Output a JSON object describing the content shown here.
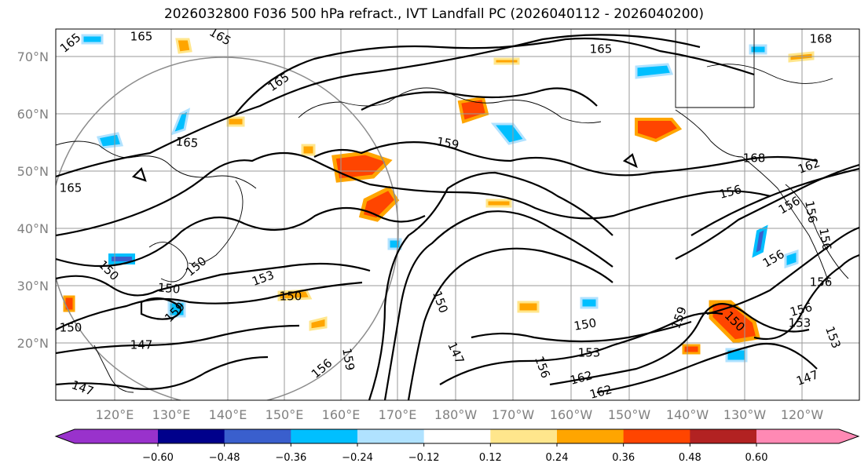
{
  "title": "2026032800 F036 500 hPa refract., IVT Landfall PC (2026040112 - 2026040200)",
  "map": {
    "lat_labels": [
      "70°N",
      "60°N",
      "50°N",
      "40°N",
      "30°N",
      "20°N"
    ],
    "lon_labels": [
      "120°E",
      "130°E",
      "140°E",
      "150°E",
      "160°E",
      "170°E",
      "180°W",
      "170°W",
      "160°W",
      "150°W",
      "140°W",
      "130°W",
      "120°W"
    ],
    "contour_labels": [
      "165",
      "165",
      "165",
      "165",
      "165",
      "165",
      "165",
      "168",
      "168",
      "159",
      "162",
      "156",
      "156",
      "156",
      "156",
      "156",
      "156",
      "156",
      "156",
      "153",
      "153",
      "153",
      "153",
      "150",
      "150",
      "150",
      "150",
      "150",
      "150",
      "150",
      "147",
      "147",
      "147",
      "147",
      "150",
      "162",
      "162",
      "159",
      "159",
      "159",
      "156"
    ],
    "colors": {
      "contour": "#000000",
      "grid": "#9a9a9a",
      "circle": "#8c8c8c",
      "coast": "#000000"
    }
  },
  "colorbar": {
    "tick_labels": [
      "−0.60",
      "−0.48",
      "−0.36",
      "−0.24",
      "−0.12",
      "0.12",
      "0.24",
      "0.36",
      "0.48",
      "0.60"
    ],
    "colors": [
      "#9932cc",
      "#00008b",
      "#3a5fcd",
      "#00bfff",
      "#b0e2ff",
      "#ffffff",
      "#ffe68c",
      "#ffa500",
      "#ff4500",
      "#b22222",
      "#ff89b4"
    ]
  }
}
